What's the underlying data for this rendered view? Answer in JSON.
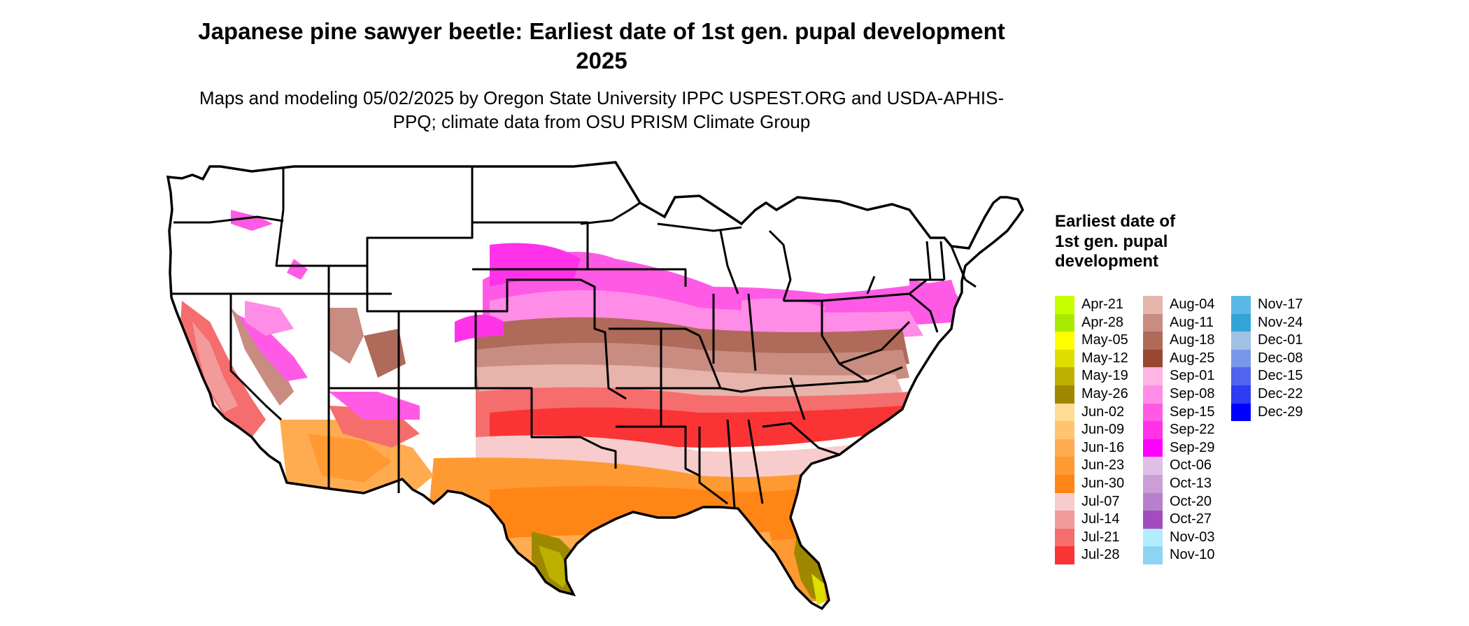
{
  "title": "Japanese pine sawyer beetle: Earliest date of 1st gen. pupal development 2025",
  "subtitle": "Maps and modeling 05/02/2025 by Oregon State University IPPC USPEST.ORG and USDA-APHIS-PPQ; climate data from OSU PRISM Climate Group",
  "legend": {
    "title": "Earliest date of 1st gen. pupal development",
    "items": [
      {
        "label": "Apr-21",
        "color": "#c8ff00"
      },
      {
        "label": "Apr-28",
        "color": "#a9ea00"
      },
      {
        "label": "May-05",
        "color": "#ffff00"
      },
      {
        "label": "May-12",
        "color": "#dede00"
      },
      {
        "label": "May-19",
        "color": "#bdb100"
      },
      {
        "label": "May-26",
        "color": "#9e8800"
      },
      {
        "label": "Jun-02",
        "color": "#ffdc94"
      },
      {
        "label": "Jun-09",
        "color": "#ffc470"
      },
      {
        "label": "Jun-16",
        "color": "#ffac50"
      },
      {
        "label": "Jun-23",
        "color": "#ff9a32"
      },
      {
        "label": "Jun-30",
        "color": "#ff8516"
      },
      {
        "label": "Jul-07",
        "color": "#f8cccc"
      },
      {
        "label": "Jul-14",
        "color": "#f39a9a"
      },
      {
        "label": "Jul-21",
        "color": "#f56d6d"
      },
      {
        "label": "Jul-28",
        "color": "#fa3434"
      },
      {
        "label": "Aug-04",
        "color": "#e6b4aa"
      },
      {
        "label": "Aug-11",
        "color": "#c88c80"
      },
      {
        "label": "Aug-18",
        "color": "#af6a5a"
      },
      {
        "label": "Aug-25",
        "color": "#994632"
      },
      {
        "label": "Sep-01",
        "color": "#ffb4e4"
      },
      {
        "label": "Sep-08",
        "color": "#ff8ce6"
      },
      {
        "label": "Sep-15",
        "color": "#ff5ae6"
      },
      {
        "label": "Sep-22",
        "color": "#ff32ea"
      },
      {
        "label": "Sep-29",
        "color": "#ff00ff"
      },
      {
        "label": "Oct-06",
        "color": "#dfbfe8"
      },
      {
        "label": "Oct-13",
        "color": "#cc9ed8"
      },
      {
        "label": "Oct-20",
        "color": "#b880cc"
      },
      {
        "label": "Oct-27",
        "color": "#a24cc0"
      },
      {
        "label": "Nov-03",
        "color": "#b2ecff"
      },
      {
        "label": "Nov-10",
        "color": "#8cd4f4"
      },
      {
        "label": "Nov-17",
        "color": "#5ab8e6"
      },
      {
        "label": "Nov-24",
        "color": "#32a4d8"
      },
      {
        "label": "Dec-01",
        "color": "#a0c0e6"
      },
      {
        "label": "Dec-08",
        "color": "#7896ea"
      },
      {
        "label": "Dec-15",
        "color": "#5064ee"
      },
      {
        "label": "Dec-22",
        "color": "#2e3cf4"
      },
      {
        "label": "Dec-29",
        "color": "#0000ff"
      }
    ]
  }
}
